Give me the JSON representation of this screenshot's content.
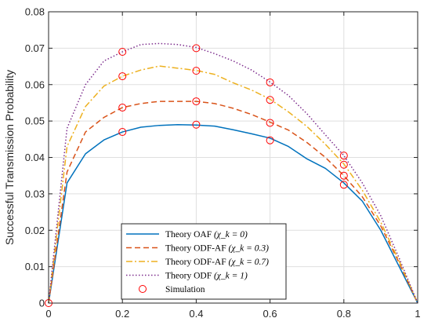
{
  "chart_data": {
    "type": "line",
    "title": "",
    "xlabel": "",
    "ylabel": "Successful Transmission Probability",
    "xlim": [
      0,
      1
    ],
    "ylim": [
      0,
      0.08
    ],
    "x_ticks": [
      "0",
      "0.2",
      "0.4",
      "0.6",
      "0.8",
      "1"
    ],
    "y_ticks": [
      "0",
      "0.01",
      "0.02",
      "0.03",
      "0.04",
      "0.05",
      "0.06",
      "0.07",
      "0.08"
    ],
    "grid": true,
    "legend_position": "bottom-center",
    "x": [
      0,
      0.05,
      0.1,
      0.15,
      0.2,
      0.25,
      0.3,
      0.35,
      0.4,
      0.45,
      0.5,
      0.55,
      0.6,
      0.65,
      0.7,
      0.75,
      0.8,
      0.85,
      0.9,
      0.95,
      1
    ],
    "series": [
      {
        "name": "Theory OAF (χ_k = 0)",
        "color": "#0072BD",
        "style": "solid",
        "values": [
          0,
          0.033,
          0.041,
          0.0448,
          0.047,
          0.0483,
          0.0488,
          0.049,
          0.0489,
          0.0486,
          0.0476,
          0.0465,
          0.0453,
          0.043,
          0.0396,
          0.037,
          0.033,
          0.028,
          0.02,
          0.01,
          0
        ]
      },
      {
        "name": "Theory ODF-AF (χ_k = 0.3)",
        "color": "#D95319",
        "style": "dashed",
        "values": [
          0,
          0.036,
          0.047,
          0.051,
          0.0537,
          0.0548,
          0.0554,
          0.0554,
          0.0554,
          0.0548,
          0.0535,
          0.0518,
          0.0497,
          0.0475,
          0.0441,
          0.04,
          0.035,
          0.0292,
          0.0212,
          0.011,
          0
        ]
      },
      {
        "name": "Theory ODF-AF (χ_k = 0.7)",
        "color": "#EDB120",
        "style": "dashdot",
        "values": [
          0,
          0.043,
          0.054,
          0.0596,
          0.0623,
          0.064,
          0.0651,
          0.0645,
          0.0639,
          0.0628,
          0.0605,
          0.0585,
          0.056,
          0.0525,
          0.0485,
          0.0436,
          0.0382,
          0.031,
          0.0222,
          0.0115,
          0
        ]
      },
      {
        "name": "Theory ODF (χ_k = 1)",
        "color": "#7E2F8E",
        "style": "dotted",
        "values": [
          0,
          0.048,
          0.06,
          0.0665,
          0.069,
          0.071,
          0.0713,
          0.071,
          0.0702,
          0.0685,
          0.0665,
          0.064,
          0.0607,
          0.057,
          0.052,
          0.0462,
          0.0405,
          0.033,
          0.024,
          0.0123,
          0
        ]
      }
    ],
    "markers": {
      "name": "Simulation",
      "color": "#FF0000",
      "points": [
        [
          0,
          0
        ],
        [
          0.2,
          0.047
        ],
        [
          0.2,
          0.0537
        ],
        [
          0.2,
          0.0623
        ],
        [
          0.2,
          0.069
        ],
        [
          0.4,
          0.049
        ],
        [
          0.4,
          0.0554
        ],
        [
          0.4,
          0.0638
        ],
        [
          0.4,
          0.07
        ],
        [
          0.6,
          0.0447
        ],
        [
          0.6,
          0.0495
        ],
        [
          0.6,
          0.0558
        ],
        [
          0.6,
          0.0606
        ],
        [
          0.8,
          0.0325
        ],
        [
          0.8,
          0.035
        ],
        [
          0.8,
          0.038
        ],
        [
          0.8,
          0.0405
        ]
      ]
    },
    "legend": [
      {
        "label": "Theory OAF ",
        "math": "(χ_k = 0)"
      },
      {
        "label": "Theory ODF-AF ",
        "math": "(χ_k = 0.3)"
      },
      {
        "label": "Theory ODF-AF ",
        "math": "(χ_k = 0.7)"
      },
      {
        "label": "Theory ODF ",
        "math": "(χ_k = 1)"
      },
      {
        "label": "Simulation",
        "math": ""
      }
    ]
  }
}
